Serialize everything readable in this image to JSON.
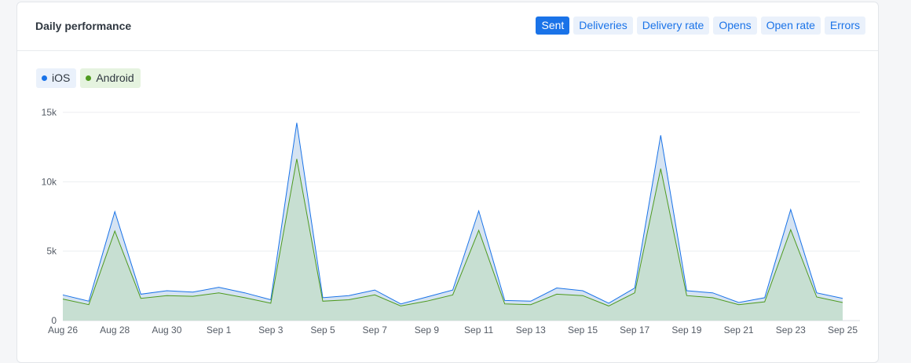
{
  "header": {
    "title": "Daily performance"
  },
  "tabs": [
    {
      "label": "Sent",
      "active": true
    },
    {
      "label": "Deliveries",
      "active": false
    },
    {
      "label": "Delivery rate",
      "active": false
    },
    {
      "label": "Opens",
      "active": false
    },
    {
      "label": "Open rate",
      "active": false
    },
    {
      "label": "Errors",
      "active": false
    }
  ],
  "legend": [
    {
      "label": "iOS",
      "color": "#1a73e8"
    },
    {
      "label": "Android",
      "color": "#4e9a1e"
    }
  ],
  "chart_data": {
    "type": "area",
    "title": "Daily performance",
    "xlabel": "",
    "ylabel": "",
    "stacked": false,
    "ylim": [
      0,
      15000
    ],
    "y_ticks": [
      "0",
      "5k",
      "10k",
      "15k"
    ],
    "x_tick_labels": [
      "Aug 26",
      "Aug 28",
      "Aug 30",
      "Sep 1",
      "Sep 3",
      "Sep 5",
      "Sep 7",
      "Sep 9",
      "Sep 11",
      "Sep 13",
      "Sep 15",
      "Sep 17",
      "Sep 19",
      "Sep 21",
      "Sep 23",
      "Sep 25"
    ],
    "x": [
      "Aug 26",
      "Aug 27",
      "Aug 28",
      "Aug 29",
      "Aug 30",
      "Aug 31",
      "Sep 1",
      "Sep 2",
      "Sep 3",
      "Sep 4",
      "Sep 5",
      "Sep 6",
      "Sep 7",
      "Sep 8",
      "Sep 9",
      "Sep 10",
      "Sep 11",
      "Sep 12",
      "Sep 13",
      "Sep 14",
      "Sep 15",
      "Sep 16",
      "Sep 17",
      "Sep 18",
      "Sep 19",
      "Sep 20",
      "Sep 21",
      "Sep 22",
      "Sep 23",
      "Sep 24",
      "Sep 25"
    ],
    "series": [
      {
        "name": "iOS",
        "color": "#1a73e8",
        "values": [
          1850,
          1400,
          7850,
          1900,
          2150,
          2050,
          2400,
          2000,
          1500,
          14250,
          1650,
          1800,
          2200,
          1200,
          1700,
          2200,
          7900,
          1450,
          1400,
          2350,
          2150,
          1250,
          2350,
          13350,
          2150,
          2000,
          1300,
          1650,
          8000,
          2000,
          1600
        ]
      },
      {
        "name": "Android",
        "color": "#4e9a1e",
        "values": [
          1550,
          1150,
          6450,
          1600,
          1800,
          1750,
          2000,
          1650,
          1250,
          11650,
          1400,
          1500,
          1850,
          1050,
          1400,
          1850,
          6500,
          1200,
          1150,
          1900,
          1800,
          1050,
          2000,
          10950,
          1800,
          1650,
          1150,
          1350,
          6550,
          1700,
          1300
        ]
      }
    ],
    "grid": true,
    "legend_position": "top-left"
  }
}
